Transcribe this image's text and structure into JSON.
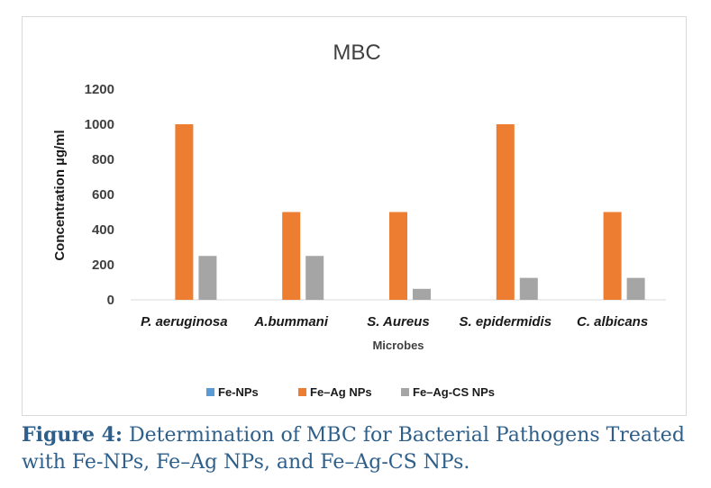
{
  "chart_data": {
    "type": "bar",
    "title": "MBC",
    "xlabel": "Microbes",
    "ylabel": "Concentration µg/ml",
    "ylim": [
      0,
      1200
    ],
    "yticks": [
      0,
      200,
      400,
      600,
      800,
      1000,
      1200
    ],
    "categories": [
      "P. aeruginosa",
      "A.bummani",
      "S. Aureus",
      "S. epidermidis",
      "C. albicans"
    ],
    "series": [
      {
        "name": "Fe-NPs",
        "color": "#5b9bd5",
        "values": [
          0,
          0,
          0,
          0,
          0
        ]
      },
      {
        "name": "Fe–Ag NPs",
        "color": "#ed7d31",
        "values": [
          1000,
          500,
          500,
          1000,
          500
        ]
      },
      {
        "name": "Fe–Ag-CS NPs",
        "color": "#a5a5a5",
        "values": [
          250,
          250,
          62.5,
          125,
          125
        ]
      }
    ],
    "grid": false,
    "legend_position": "bottom"
  },
  "caption": {
    "label": "Figure 4:",
    "text": " Determination of MBC for Bacterial Pathogens Treated with Fe-NPs, Fe–Ag NPs, and Fe–Ag-CS NPs."
  }
}
